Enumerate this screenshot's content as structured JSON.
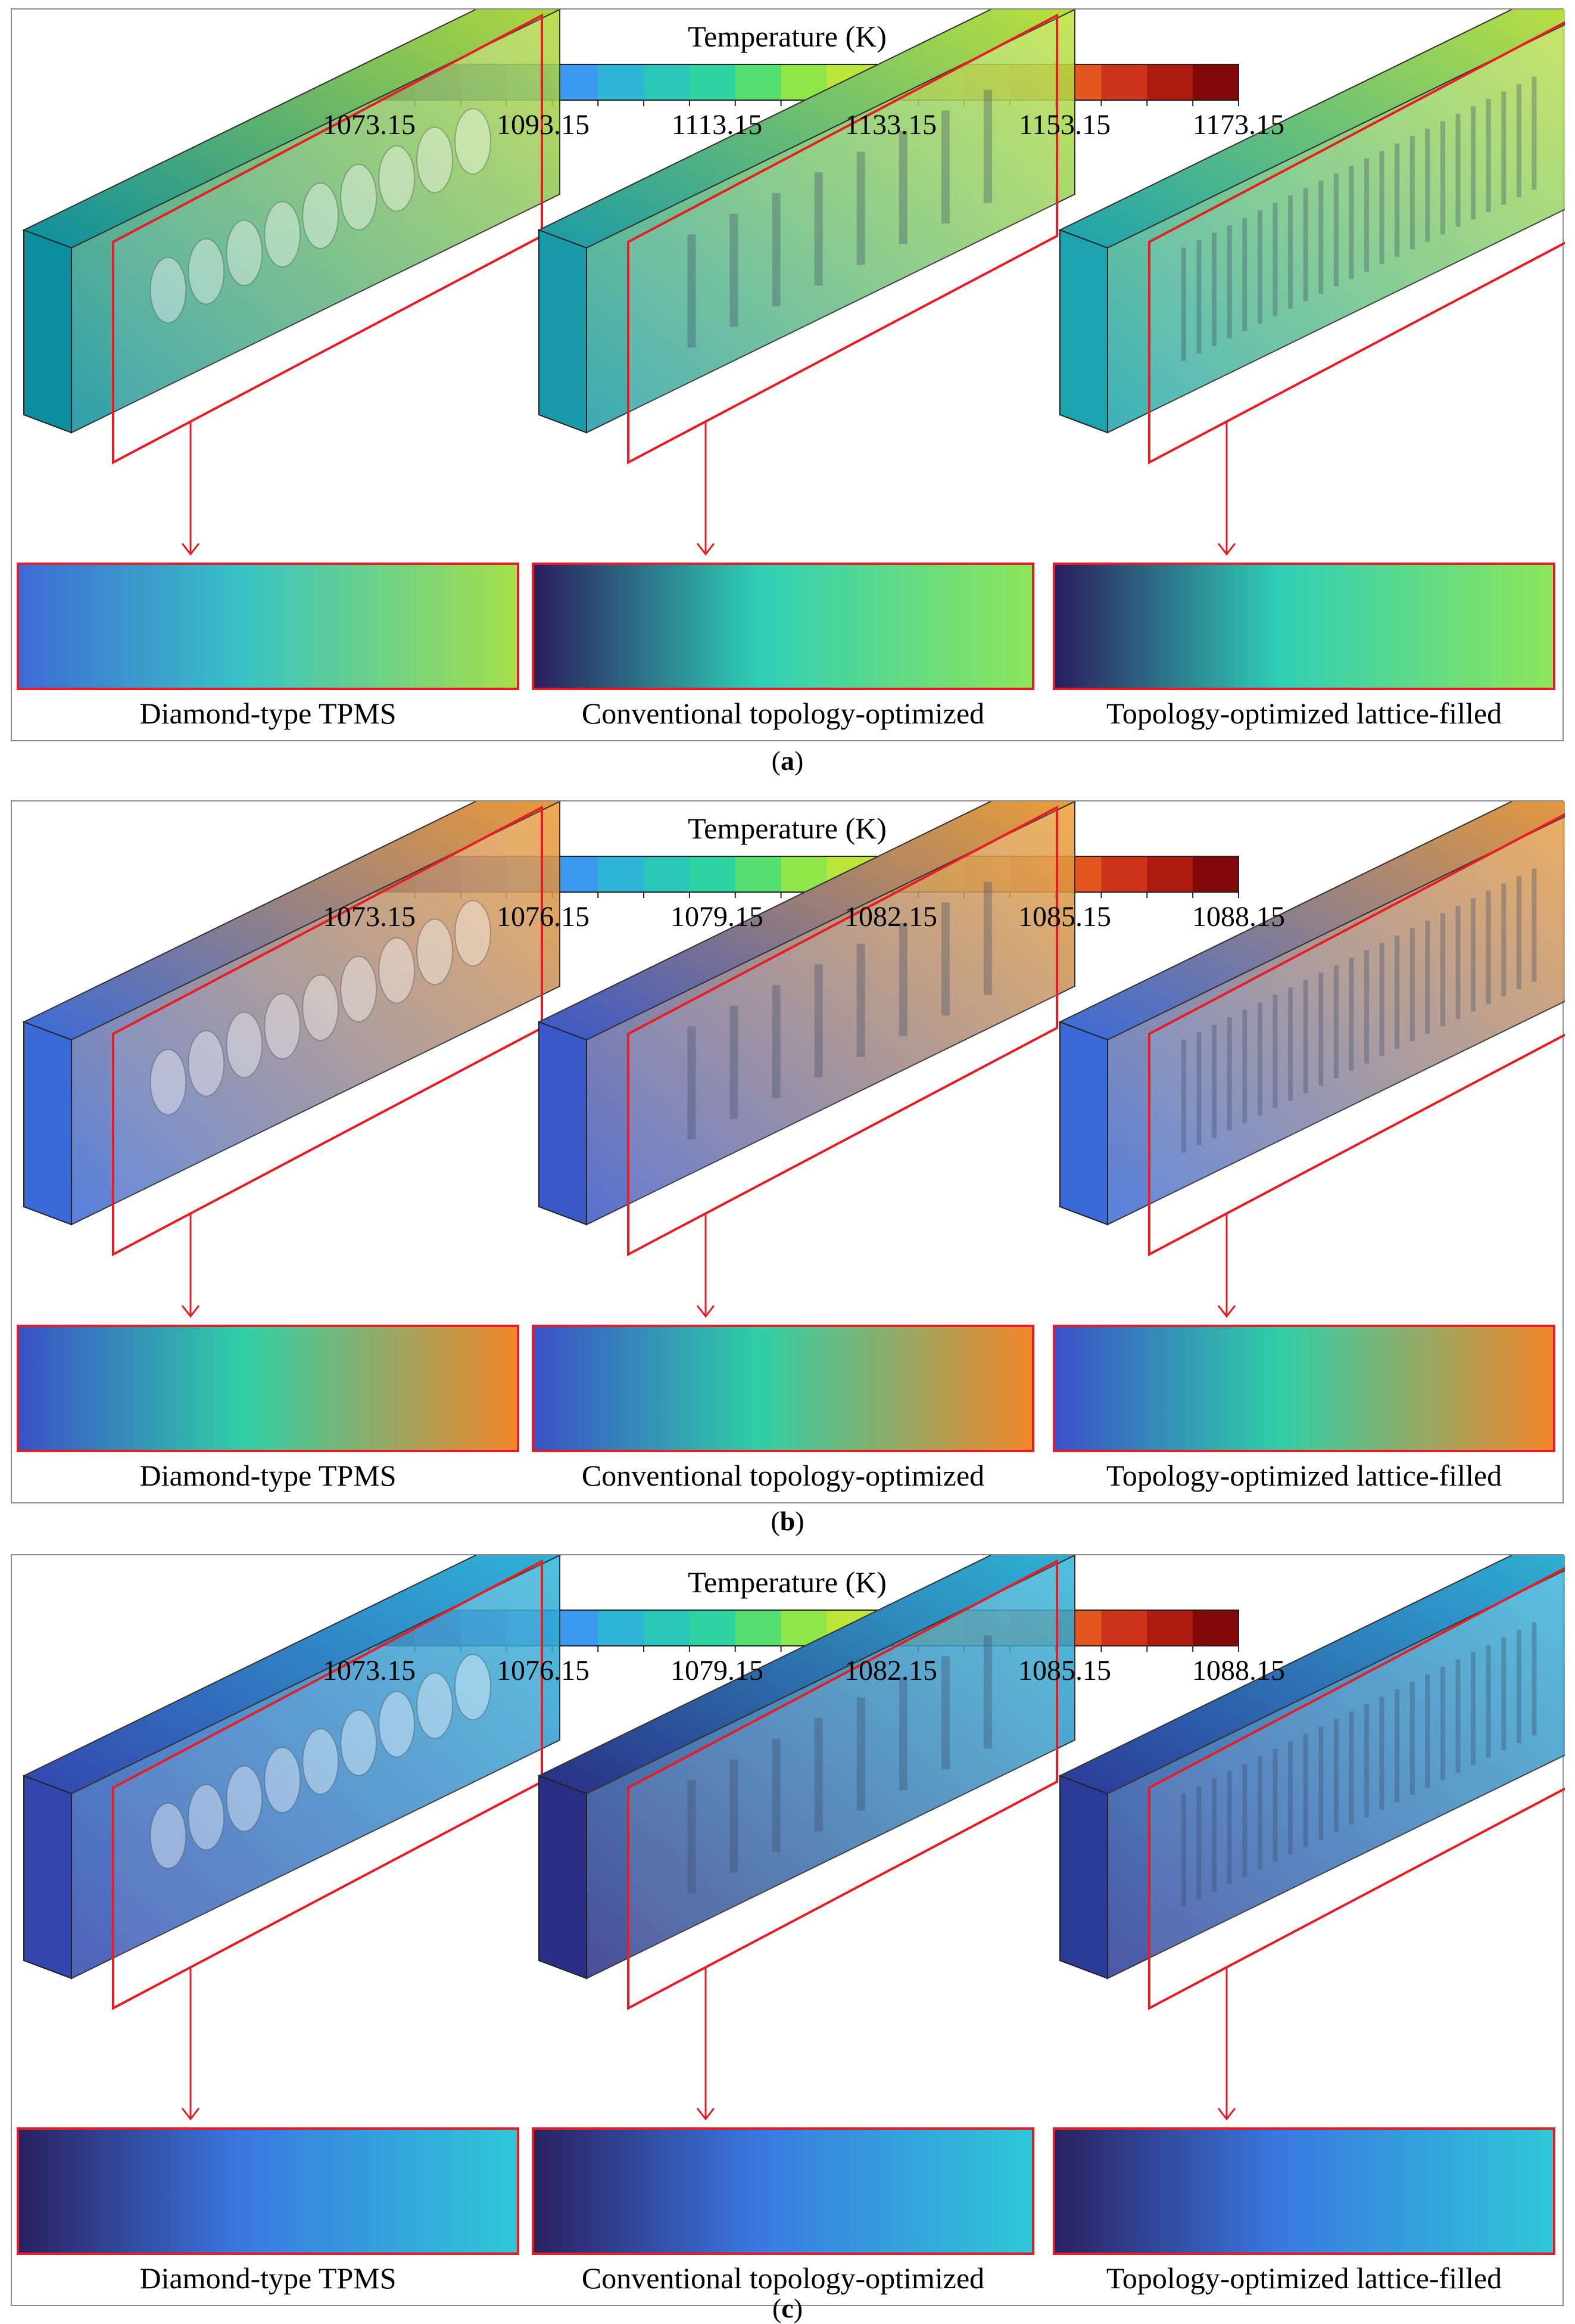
{
  "panels": [
    {
      "letter": "a",
      "colorbar_title": "Temperature (K)",
      "ticks": [
        "1073.15",
        "1093.15",
        "1113.15",
        "1133.15",
        "1153.15",
        "1173.15"
      ],
      "captions": [
        "Diamond-type TPMS",
        "Conventional topology-optimized",
        "Topology-optimized  lattice-filled"
      ],
      "fields": [
        {
          "left": "#0c8e9f",
          "right": "#b6d83a",
          "sheen": "#ffffff"
        },
        {
          "left": "#1a9aa8",
          "right": "#bfe238",
          "sheen": "#e8ffe0"
        },
        {
          "left": "#1ba3b0",
          "right": "#c2e23a",
          "sheen": "#e8ffe0"
        }
      ],
      "slices": [
        {
          "from": "#3e6ad6",
          "mid": "#38c3c4",
          "to": "#a5e04a"
        },
        {
          "from": "#2a1c5c",
          "mid": "#2fcfb7",
          "to": "#8ee65a"
        },
        {
          "from": "#2a1c5c",
          "mid": "#2fcfb7",
          "to": "#8ee65a"
        }
      ]
    },
    {
      "letter": "b",
      "colorbar_title": "Temperature (K)",
      "ticks": [
        "1073.15",
        "1076.15",
        "1079.15",
        "1082.15",
        "1085.15",
        "1088.15"
      ],
      "captions": [
        "Diamond-type TPMS",
        "Conventional topology-optimized",
        "Topology-optimized  lattice-filled"
      ],
      "fields": [
        {
          "left": "#3a6ad8",
          "right": "#f09a32",
          "sheen": "#ffffff"
        },
        {
          "left": "#3a58c8",
          "right": "#f0a030",
          "sheen": "#ffffff"
        },
        {
          "left": "#3a6ad8",
          "right": "#f09a32",
          "sheen": "#ffffff"
        }
      ],
      "slices": [
        {
          "from": "#3a50c8",
          "mid": "#2fcfa6",
          "to": "#f4862a"
        },
        {
          "from": "#3a50c8",
          "mid": "#2fcfa6",
          "to": "#f4862a"
        },
        {
          "from": "#3a50c8",
          "mid": "#2fcfa6",
          "to": "#f4862a"
        }
      ]
    },
    {
      "letter": "c",
      "colorbar_title": "Temperature (K)",
      "ticks": [
        "1073.15",
        "1076.15",
        "1079.15",
        "1082.15",
        "1085.15",
        "1088.15"
      ],
      "captions": [
        "Diamond-type TPMS",
        "Conventional topology-optimized",
        "Topology-optimized  lattice-filled"
      ],
      "fields": [
        {
          "left": "#3246ae",
          "right": "#2fb6d8",
          "sheen": "#ffffff"
        },
        {
          "left": "#2a2f84",
          "right": "#2fb6d8",
          "sheen": "#ffffff"
        },
        {
          "left": "#2c3a98",
          "right": "#2fb6d8",
          "sheen": "#ffffff"
        }
      ],
      "slices": [
        {
          "from": "#2a2060",
          "mid": "#3a78e0",
          "to": "#2fc8d8"
        },
        {
          "from": "#2a2060",
          "mid": "#3a78e0",
          "to": "#2fc8d8"
        },
        {
          "from": "#2a2060",
          "mid": "#3a78e0",
          "to": "#2fc8d8"
        }
      ]
    }
  ],
  "colorbar_colors": [
    "#2a1f5a",
    "#3838a6",
    "#3f5ad0",
    "#3f7ae8",
    "#3a9aef",
    "#2fb5d8",
    "#2ac6b9",
    "#2dd3a0",
    "#56df71",
    "#8ee649",
    "#bde63a",
    "#dcd833",
    "#f2bb2e",
    "#f69a2b",
    "#f47828",
    "#e45520",
    "#cc3318",
    "#ad1a10",
    "#82080a"
  ],
  "frame_color": "#e81c24"
}
